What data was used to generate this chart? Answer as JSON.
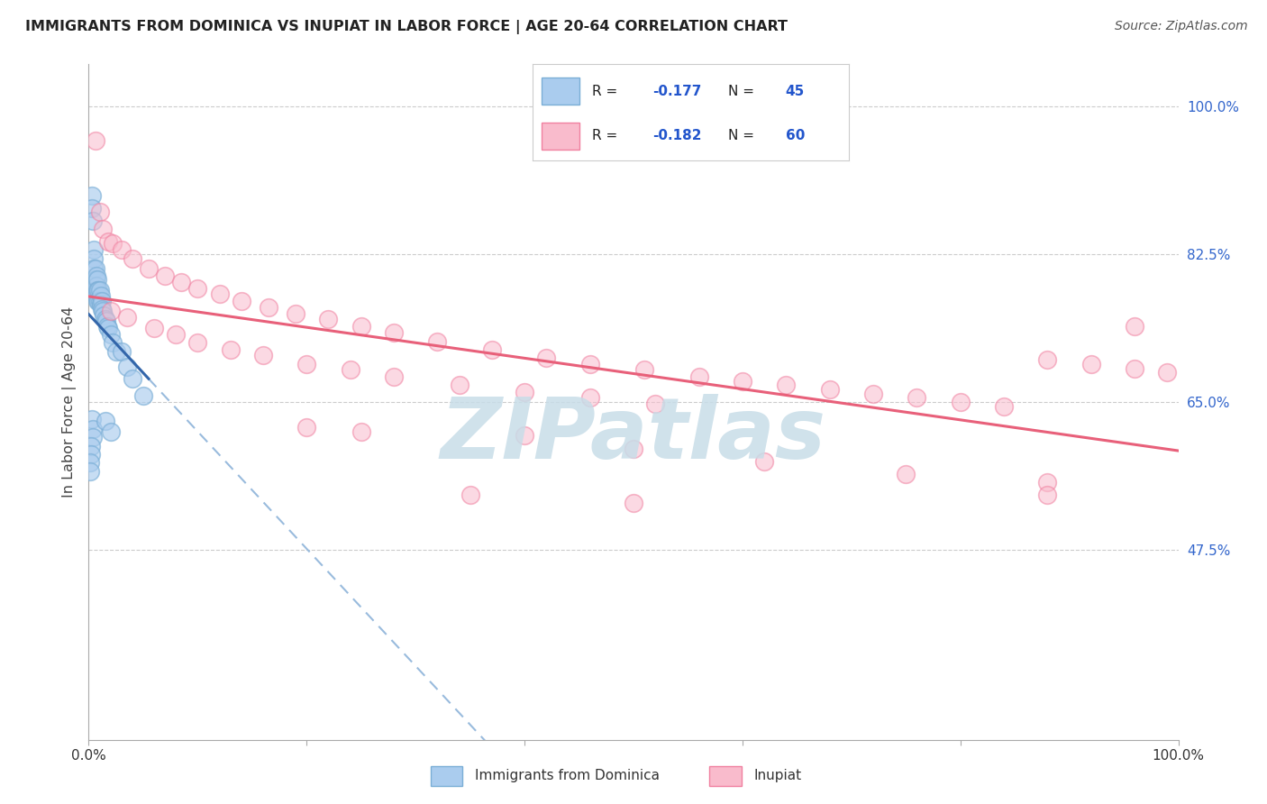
{
  "title": "IMMIGRANTS FROM DOMINICA VS INUPIAT IN LABOR FORCE | AGE 20-64 CORRELATION CHART",
  "source": "Source: ZipAtlas.com",
  "ylabel": "In Labor Force | Age 20-64",
  "xlim": [
    0.0,
    1.0
  ],
  "ylim": [
    0.25,
    1.05
  ],
  "xtick_vals": [
    0.0,
    1.0
  ],
  "xtick_labels": [
    "0.0%",
    "100.0%"
  ],
  "ytick_positions": [
    0.475,
    0.65,
    0.825,
    1.0
  ],
  "ytick_labels": [
    "47.5%",
    "65.0%",
    "82.5%",
    "100.0%"
  ],
  "grid_color": "#cccccc",
  "background_color": "#ffffff",
  "blue_color": "#7aaed6",
  "pink_color": "#f4a0b0",
  "legend_R_blue": "R = -0.177",
  "legend_N_blue": "N = 45",
  "legend_R_pink": "R = -0.182",
  "legend_N_pink": "N = 60",
  "blue_scatter_x": [
    0.003,
    0.003,
    0.004,
    0.005,
    0.005,
    0.005,
    0.006,
    0.006,
    0.006,
    0.007,
    0.007,
    0.007,
    0.008,
    0.008,
    0.008,
    0.009,
    0.009,
    0.01,
    0.01,
    0.011,
    0.011,
    0.012,
    0.012,
    0.013,
    0.014,
    0.015,
    0.016,
    0.017,
    0.018,
    0.02,
    0.022,
    0.025,
    0.03,
    0.035,
    0.04,
    0.05,
    0.003,
    0.004,
    0.004,
    0.002,
    0.002,
    0.001,
    0.001,
    0.015,
    0.02
  ],
  "blue_scatter_y": [
    0.895,
    0.88,
    0.865,
    0.83,
    0.82,
    0.808,
    0.808,
    0.795,
    0.782,
    0.8,
    0.788,
    0.776,
    0.795,
    0.782,
    0.77,
    0.782,
    0.77,
    0.782,
    0.77,
    0.776,
    0.765,
    0.77,
    0.76,
    0.758,
    0.752,
    0.748,
    0.746,
    0.74,
    0.738,
    0.73,
    0.72,
    0.71,
    0.71,
    0.692,
    0.678,
    0.658,
    0.63,
    0.618,
    0.608,
    0.598,
    0.588,
    0.578,
    0.568,
    0.628,
    0.615
  ],
  "pink_scatter_x": [
    0.006,
    0.01,
    0.013,
    0.018,
    0.022,
    0.03,
    0.04,
    0.055,
    0.07,
    0.085,
    0.1,
    0.12,
    0.14,
    0.165,
    0.19,
    0.22,
    0.25,
    0.28,
    0.32,
    0.37,
    0.42,
    0.46,
    0.51,
    0.56,
    0.6,
    0.64,
    0.68,
    0.72,
    0.76,
    0.8,
    0.84,
    0.88,
    0.92,
    0.96,
    0.99,
    0.96,
    0.02,
    0.035,
    0.06,
    0.08,
    0.1,
    0.13,
    0.16,
    0.2,
    0.24,
    0.28,
    0.34,
    0.4,
    0.46,
    0.52,
    0.2,
    0.25,
    0.4,
    0.5,
    0.62,
    0.75,
    0.88,
    0.88,
    0.35,
    0.5
  ],
  "pink_scatter_y": [
    0.96,
    0.875,
    0.855,
    0.84,
    0.838,
    0.83,
    0.82,
    0.808,
    0.8,
    0.792,
    0.785,
    0.778,
    0.77,
    0.762,
    0.755,
    0.748,
    0.74,
    0.732,
    0.722,
    0.712,
    0.702,
    0.695,
    0.688,
    0.68,
    0.675,
    0.67,
    0.665,
    0.66,
    0.655,
    0.65,
    0.645,
    0.7,
    0.695,
    0.69,
    0.685,
    0.74,
    0.758,
    0.75,
    0.738,
    0.73,
    0.72,
    0.712,
    0.705,
    0.695,
    0.688,
    0.68,
    0.67,
    0.662,
    0.655,
    0.648,
    0.62,
    0.615,
    0.61,
    0.595,
    0.58,
    0.565,
    0.555,
    0.54,
    0.54,
    0.53
  ],
  "watermark_text": "ZIPatlas",
  "watermark_color": "#c8dde8"
}
